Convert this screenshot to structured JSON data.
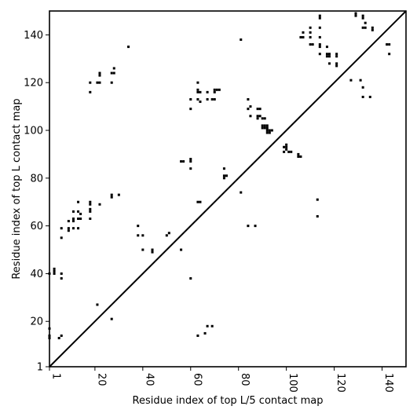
{
  "chart_data": {
    "type": "scatter",
    "title": "",
    "xlabel": "Residue index of top L/5 contact map",
    "ylabel": "Residue index of top L contact map",
    "xlim": [
      1,
      150
    ],
    "ylim": [
      1,
      150
    ],
    "xticks": [
      1,
      20,
      40,
      60,
      80,
      100,
      120,
      140
    ],
    "yticks": [
      1,
      20,
      40,
      60,
      80,
      100,
      120,
      140
    ],
    "diagonal": true,
    "marker": "square",
    "marker_color": "#000000",
    "grid": false,
    "points": [
      [
        1,
        13
      ],
      [
        1,
        14
      ],
      [
        1,
        17
      ],
      [
        1,
        40
      ],
      [
        3,
        40
      ],
      [
        3,
        41
      ],
      [
        3,
        42
      ],
      [
        5,
        13
      ],
      [
        6,
        14
      ],
      [
        6,
        38
      ],
      [
        6,
        40
      ],
      [
        6,
        55
      ],
      [
        6,
        59
      ],
      [
        9,
        58
      ],
      [
        9,
        59
      ],
      [
        9,
        62
      ],
      [
        11,
        59
      ],
      [
        11,
        62
      ],
      [
        11,
        63
      ],
      [
        11,
        66
      ],
      [
        13,
        59
      ],
      [
        13,
        63
      ],
      [
        13,
        66
      ],
      [
        13,
        70
      ],
      [
        14,
        63
      ],
      [
        14,
        65
      ],
      [
        18,
        63
      ],
      [
        18,
        66
      ],
      [
        18,
        67
      ],
      [
        18,
        69
      ],
      [
        18,
        70
      ],
      [
        18,
        116
      ],
      [
        18,
        120
      ],
      [
        21,
        27
      ],
      [
        21,
        120
      ],
      [
        22,
        69
      ],
      [
        22,
        120
      ],
      [
        22,
        123
      ],
      [
        22,
        124
      ],
      [
        27,
        21
      ],
      [
        27,
        72
      ],
      [
        27,
        73
      ],
      [
        27,
        120
      ],
      [
        27,
        124
      ],
      [
        28,
        124
      ],
      [
        28,
        126
      ],
      [
        30,
        73
      ],
      [
        34,
        135
      ],
      [
        38,
        56
      ],
      [
        38,
        60
      ],
      [
        40,
        50
      ],
      [
        40,
        56
      ],
      [
        44,
        49
      ],
      [
        44,
        50
      ],
      [
        50,
        56
      ],
      [
        51,
        57
      ],
      [
        56,
        50
      ],
      [
        56,
        87
      ],
      [
        57,
        87
      ],
      [
        60,
        38
      ],
      [
        60,
        84
      ],
      [
        60,
        87
      ],
      [
        60,
        88
      ],
      [
        60,
        109
      ],
      [
        60,
        113
      ],
      [
        63,
        14
      ],
      [
        63,
        70
      ],
      [
        63,
        113
      ],
      [
        63,
        116
      ],
      [
        63,
        117
      ],
      [
        63,
        120
      ],
      [
        64,
        70
      ],
      [
        64,
        112
      ],
      [
        64,
        116
      ],
      [
        66,
        15
      ],
      [
        67,
        18
      ],
      [
        67,
        113
      ],
      [
        67,
        116
      ],
      [
        69,
        18
      ],
      [
        69,
        113
      ],
      [
        70,
        113
      ],
      [
        70,
        116
      ],
      [
        70,
        117
      ],
      [
        71,
        117
      ],
      [
        72,
        117
      ],
      [
        74,
        80
      ],
      [
        74,
        81
      ],
      [
        74,
        84
      ],
      [
        75,
        81
      ],
      [
        81,
        74
      ],
      [
        81,
        138
      ],
      [
        84,
        60
      ],
      [
        84,
        109
      ],
      [
        84,
        113
      ],
      [
        85,
        106
      ],
      [
        85,
        110
      ],
      [
        87,
        60
      ],
      [
        88,
        105
      ],
      [
        88,
        106
      ],
      [
        88,
        109
      ],
      [
        89,
        106
      ],
      [
        89,
        109
      ],
      [
        90,
        101
      ],
      [
        90,
        102
      ],
      [
        90,
        105
      ],
      [
        91,
        101
      ],
      [
        91,
        102
      ],
      [
        91,
        105
      ],
      [
        92,
        99
      ],
      [
        92,
        100
      ],
      [
        92,
        101
      ],
      [
        92,
        102
      ],
      [
        93,
        99
      ],
      [
        93,
        100
      ],
      [
        94,
        100
      ],
      [
        99,
        91
      ],
      [
        99,
        93
      ],
      [
        100,
        92
      ],
      [
        100,
        93
      ],
      [
        100,
        94
      ],
      [
        101,
        91
      ],
      [
        102,
        91
      ],
      [
        105,
        89
      ],
      [
        105,
        90
      ],
      [
        106,
        89
      ],
      [
        106,
        139
      ],
      [
        107,
        139
      ],
      [
        107,
        141
      ],
      [
        110,
        136
      ],
      [
        110,
        139
      ],
      [
        110,
        141
      ],
      [
        110,
        143
      ],
      [
        111,
        136
      ],
      [
        113,
        64
      ],
      [
        113,
        71
      ],
      [
        114,
        132
      ],
      [
        114,
        135
      ],
      [
        114,
        136
      ],
      [
        114,
        139
      ],
      [
        114,
        143
      ],
      [
        114,
        147
      ],
      [
        114,
        148
      ],
      [
        117,
        131
      ],
      [
        117,
        132
      ],
      [
        117,
        135
      ],
      [
        118,
        128
      ],
      [
        118,
        131
      ],
      [
        118,
        132
      ],
      [
        121,
        127
      ],
      [
        121,
        128
      ],
      [
        121,
        131
      ],
      [
        121,
        132
      ],
      [
        127,
        121
      ],
      [
        129,
        148
      ],
      [
        129,
        149
      ],
      [
        131,
        121
      ],
      [
        132,
        114
      ],
      [
        132,
        118
      ],
      [
        132,
        143
      ],
      [
        132,
        147
      ],
      [
        132,
        148
      ],
      [
        133,
        143
      ],
      [
        133,
        145
      ],
      [
        135,
        114
      ],
      [
        136,
        142
      ],
      [
        136,
        143
      ],
      [
        142,
        136
      ],
      [
        143,
        132
      ],
      [
        143,
        136
      ]
    ]
  }
}
